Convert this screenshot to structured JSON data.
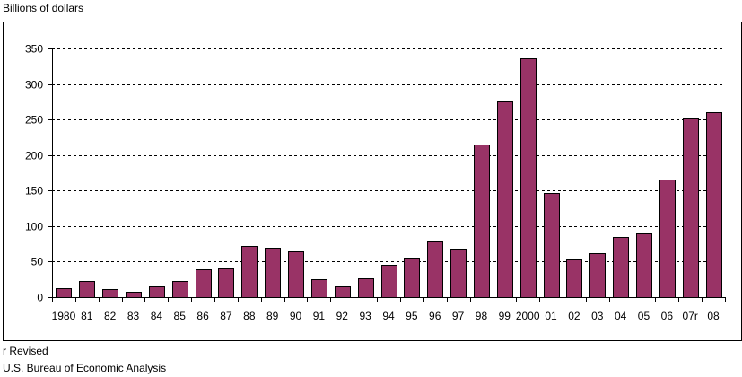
{
  "chart_data": {
    "type": "bar",
    "title": "",
    "xlabel": "",
    "ylabel": "Billions of dollars",
    "ylim": [
      0,
      350
    ],
    "yticks": [
      0,
      50,
      100,
      150,
      200,
      250,
      300,
      350
    ],
    "grid": true,
    "legend": null,
    "categories": [
      "1980",
      "81",
      "82",
      "83",
      "84",
      "85",
      "86",
      "87",
      "88",
      "89",
      "90",
      "91",
      "92",
      "93",
      "94",
      "95",
      "96",
      "97",
      "98",
      "99",
      "2000",
      "01",
      "02",
      "03",
      "04",
      "05",
      "06",
      "07r",
      "08"
    ],
    "values": [
      12.5,
      22.5,
      11,
      7.5,
      15,
      22.5,
      39,
      40,
      72,
      70,
      65,
      25,
      15,
      26,
      45,
      56,
      78,
      68,
      215,
      275,
      336,
      146,
      53.5,
      62,
      85,
      90,
      165,
      251,
      260
    ],
    "bar_color": "#993366"
  },
  "labels": {
    "ylabel": "Billions of dollars",
    "footnote": "r Revised",
    "source": "U.S. Bureau of Economic Analysis"
  }
}
